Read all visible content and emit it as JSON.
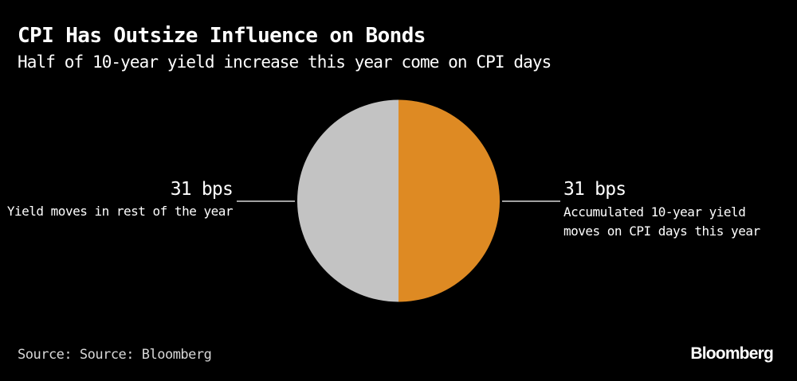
{
  "header": {
    "title": "CPI Has Outsize Influence on Bonds",
    "subtitle": "Half of 10-year yield increase this year come on CPI days"
  },
  "footer": {
    "source": "Source: Source: Bloomberg",
    "logo": "Bloomberg"
  },
  "colors": {
    "background": "#000000",
    "cpi_days": "#de8a23",
    "rest_of_year": "#c3c3c3",
    "leader_line": "#ffffff"
  },
  "chart_data": {
    "type": "pie",
    "title": "CPI Has Outsize Influence on Bonds",
    "subtitle": "Half of 10-year yield increase this year come on CPI days",
    "unit": "bps",
    "slices": [
      {
        "label": "Accumulated 10-year yield moves on CPI days this year",
        "label_lines": [
          "Accumulated 10-year yield",
          "moves on CPI days this year"
        ],
        "value": 31,
        "display": "31 bps",
        "color": "#de8a23"
      },
      {
        "label": "Yield moves in rest of the year",
        "label_lines": [
          "Yield moves in rest of the year"
        ],
        "value": 31,
        "display": "31 bps",
        "color": "#c3c3c3"
      }
    ]
  }
}
